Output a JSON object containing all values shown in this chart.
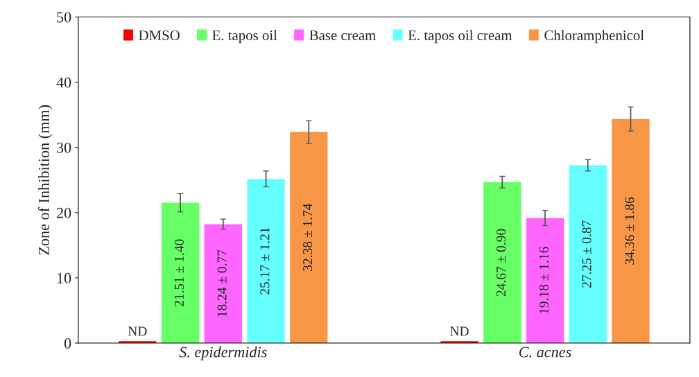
{
  "chart_data": {
    "type": "bar",
    "ylabel": "Zone of Inhibition (mm)",
    "categories": [
      "S. epidermidis",
      "C. acnes"
    ],
    "ylim": [
      0,
      50
    ],
    "yticks": [
      0,
      10,
      20,
      30,
      40,
      50
    ],
    "grid": false,
    "legend": "top",
    "series": [
      {
        "name": "DMSO",
        "color": "#ff0000",
        "values": [
          0.3,
          0.3
        ],
        "value_labels": [
          "ND",
          "ND"
        ]
      },
      {
        "name": "E. tapos oil",
        "color": "#66ff66",
        "values": [
          21.51,
          24.67
        ],
        "errors": [
          1.4,
          0.9
        ],
        "value_labels": [
          "21.51 ± 1.40",
          "24.67 ± 0.90"
        ]
      },
      {
        "name": "Base cream",
        "color": "#ff66ff",
        "values": [
          18.24,
          19.18
        ],
        "errors": [
          0.77,
          1.16
        ],
        "value_labels": [
          "18.24 ± 0.77",
          "19.18 ± 1.16"
        ]
      },
      {
        "name": "E. tapos oil cream",
        "color": "#66ffff",
        "values": [
          25.17,
          27.25
        ],
        "errors": [
          1.21,
          0.87
        ],
        "value_labels": [
          "25.17 ± 1.21",
          "27.25 ± 0.87"
        ]
      },
      {
        "name": "Chloramphenicol",
        "color": "#f79646",
        "values": [
          32.38,
          34.36
        ],
        "errors": [
          1.74,
          1.86
        ],
        "value_labels": [
          "32.38 ± 1.74",
          "34.36 ± 1.86"
        ]
      }
    ]
  }
}
